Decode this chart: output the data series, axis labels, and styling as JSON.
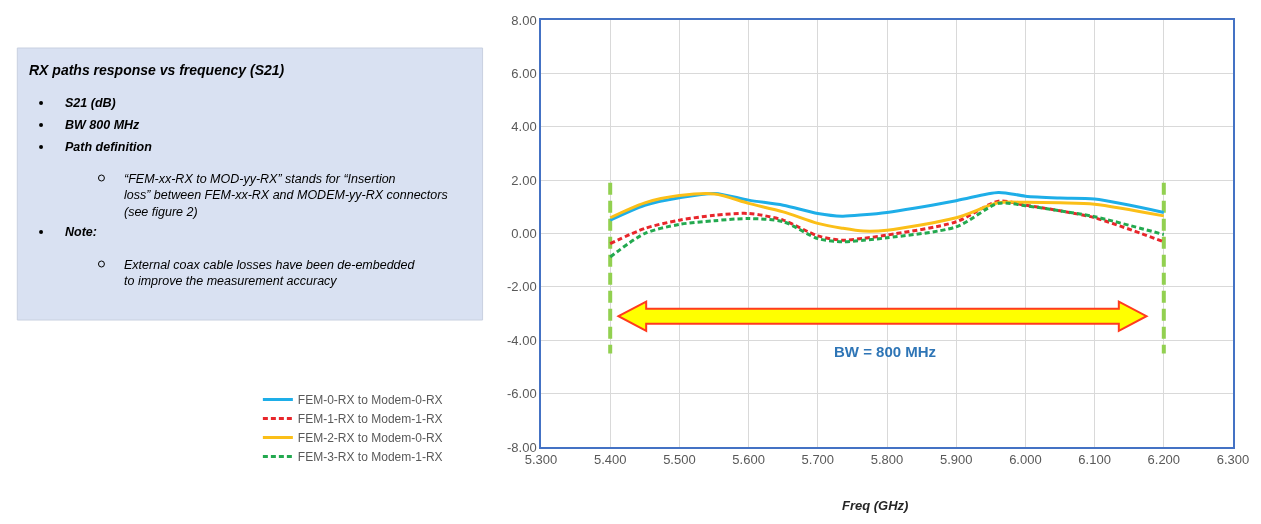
{
  "chart_data": {
    "type": "line",
    "title": "RX paths response vs frequency (S21)",
    "xlabel": "Freq (GHz)",
    "x": [
      5.4,
      5.45,
      5.5,
      5.551,
      5.6,
      5.65,
      5.7,
      5.735,
      5.766,
      5.8,
      5.9,
      5.961,
      6.0,
      6.05,
      6.1,
      6.2
    ],
    "series": [
      {
        "name": "FEM-0-RX to Modem-0-RX",
        "color": "#1eaee8",
        "line_style": "solid",
        "values": [
          0.5,
          1.06,
          1.34,
          1.5,
          1.25,
          1.06,
          0.75,
          0.65,
          0.7,
          0.79,
          1.23,
          1.54,
          1.4,
          1.33,
          1.29,
          0.79
        ]
      },
      {
        "name": "FEM-1-RX to Modem-1-RX",
        "color": "#e8262b",
        "line_style": "dashed",
        "values": [
          -0.38,
          0.19,
          0.5,
          0.68,
          0.75,
          0.5,
          -0.09,
          -0.25,
          -0.18,
          -0.06,
          0.44,
          1.21,
          1.06,
          0.85,
          0.59,
          -0.31
        ]
      },
      {
        "name": "FEM-2-RX to Modem-0-RX",
        "color": "#fbbf18",
        "line_style": "solid",
        "values": [
          0.59,
          1.15,
          1.42,
          1.48,
          1.13,
          0.81,
          0.38,
          0.2,
          0.09,
          0.12,
          0.59,
          1.15,
          1.17,
          1.15,
          1.1,
          0.66
        ]
      },
      {
        "name": "FEM-3-RX to Modem-1-RX",
        "color": "#23a94f",
        "line_style": "dashed",
        "values": [
          -0.88,
          0.0,
          0.34,
          0.48,
          0.56,
          0.44,
          -0.19,
          -0.31,
          -0.25,
          -0.16,
          0.25,
          1.13,
          1.04,
          0.85,
          0.63,
          -0.04
        ]
      }
    ],
    "xlim": [
      5.3,
      6.3
    ],
    "xticks": [
      {
        "value": 5.3,
        "label": "5.300"
      },
      {
        "value": 5.4,
        "label": "5.400"
      },
      {
        "value": 5.5,
        "label": "5.500"
      },
      {
        "value": 5.6,
        "label": "5.600"
      },
      {
        "value": 5.7,
        "label": "5.700"
      },
      {
        "value": 5.8,
        "label": "5.800"
      },
      {
        "value": 5.9,
        "label": "5.900"
      },
      {
        "value": 6.0,
        "label": "6.000"
      },
      {
        "value": 6.1,
        "label": "6.100"
      },
      {
        "value": 6.2,
        "label": "6.200"
      },
      {
        "value": 6.3,
        "label": "6.300"
      }
    ],
    "ylim": [
      -8,
      8
    ],
    "yticks": [
      {
        "value": -8,
        "label": "-8.00"
      },
      {
        "value": -6,
        "label": "-6.00"
      },
      {
        "value": -4,
        "label": "-4.00"
      },
      {
        "value": -2,
        "label": "-2.00"
      },
      {
        "value": 0,
        "label": "0.00"
      },
      {
        "value": 2,
        "label": "2.00"
      },
      {
        "value": 4,
        "label": "4.00"
      },
      {
        "value": 6,
        "label": "6.00"
      },
      {
        "value": 8,
        "label": "8.00"
      }
    ],
    "ref_lines": [
      {
        "axis": "x",
        "value": 5.4,
        "color": "#92d050",
        "line_style": "dashed"
      },
      {
        "axis": "x",
        "value": 6.2,
        "color": "#92d050",
        "line_style": "dashed"
      }
    ],
    "annotations": [
      "BW = 800 MHz",
      "S21 (dB)",
      "BW 800 MHz",
      "Path definition",
      "“FEM-xx-RX to MOD-yy-RX” stands for “Insertion loss” between FEM-xx-RX and MODEM-yy-RX connectors (see figure 2)",
      "Note:",
      "External coax cable losses have been de-embedded to improve the measurement accuracy"
    ],
    "grid": true,
    "legend": "bottom left",
    "marker": "none"
  }
}
